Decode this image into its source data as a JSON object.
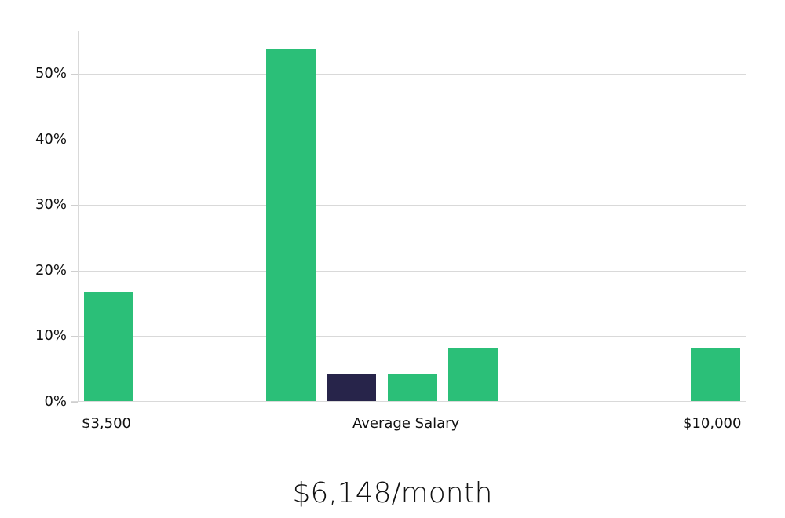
{
  "chart_data": {
    "type": "bar",
    "title": "",
    "xlabel": "Average Salary",
    "ylabel": "",
    "ylim": [
      0,
      56.5
    ],
    "yticks": [
      0,
      10,
      20,
      30,
      40,
      50
    ],
    "ytick_labels": [
      "0%",
      "10%",
      "20%",
      "30%",
      "40%",
      "50%"
    ],
    "x_range_labels": {
      "left": "$3,500",
      "center": "Average Salary",
      "right": "$10,000"
    },
    "categories": [
      "bin1",
      "bin2",
      "bin3",
      "bin4",
      "bin5",
      "bin6",
      "bin7",
      "bin8",
      "bin9",
      "bin10",
      "bin11"
    ],
    "values": [
      16.7,
      0,
      0,
      53.8,
      4.2,
      4.2,
      8.3,
      0,
      0,
      0,
      8.3
    ],
    "highlight_index": 4,
    "grid": true,
    "legend": null
  },
  "colors": {
    "bar": "#2bbf78",
    "highlight": "#27244a",
    "grid": "#d9d9d9",
    "text": "#111111"
  },
  "footer": {
    "average_salary": "$6,148/month"
  }
}
